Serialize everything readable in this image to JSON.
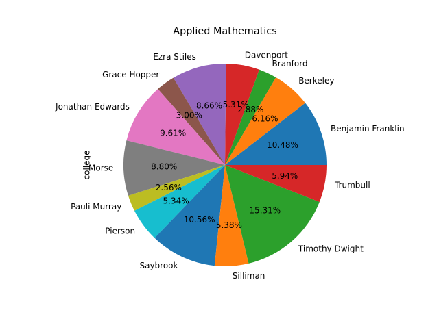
{
  "chart_data": {
    "type": "pie",
    "title": "Applied Mathematics",
    "ylabel": "college",
    "start_angle_deg": 0,
    "direction": "counterclockwise",
    "slices": [
      {
        "label": "Benjamin Franklin",
        "value": 10.48,
        "pct_label": "10.48%",
        "color": "#1f77b4"
      },
      {
        "label": "Berkeley",
        "value": 6.16,
        "pct_label": "6.16%",
        "color": "#ff7f0e"
      },
      {
        "label": "Branford",
        "value": 2.88,
        "pct_label": "2.88%",
        "color": "#2ca02c"
      },
      {
        "label": "Davenport",
        "value": 5.31,
        "pct_label": "5.31%",
        "color": "#d62728"
      },
      {
        "label": "Ezra Stiles",
        "value": 8.66,
        "pct_label": "8.66%",
        "color": "#9467bd"
      },
      {
        "label": "Grace Hopper",
        "value": 3.0,
        "pct_label": "3.00%",
        "color": "#8c564b"
      },
      {
        "label": "Jonathan Edwards",
        "value": 9.61,
        "pct_label": "9.61%",
        "color": "#e377c2"
      },
      {
        "label": "Morse",
        "value": 8.8,
        "pct_label": "8.80%",
        "color": "#7f7f7f"
      },
      {
        "label": "Pauli Murray",
        "value": 2.56,
        "pct_label": "2.56%",
        "color": "#bcbd22"
      },
      {
        "label": "Pierson",
        "value": 5.34,
        "pct_label": "5.34%",
        "color": "#17becf"
      },
      {
        "label": "Saybrook",
        "value": 10.56,
        "pct_label": "10.56%",
        "color": "#1f77b4"
      },
      {
        "label": "Silliman",
        "value": 5.38,
        "pct_label": "5.38%",
        "color": "#ff7f0e"
      },
      {
        "label": "Timothy Dwight",
        "value": 15.31,
        "pct_label": "15.31%",
        "color": "#2ca02c"
      },
      {
        "label": "Trumbull",
        "value": 5.94,
        "pct_label": "5.94%",
        "color": "#d62728"
      }
    ]
  }
}
